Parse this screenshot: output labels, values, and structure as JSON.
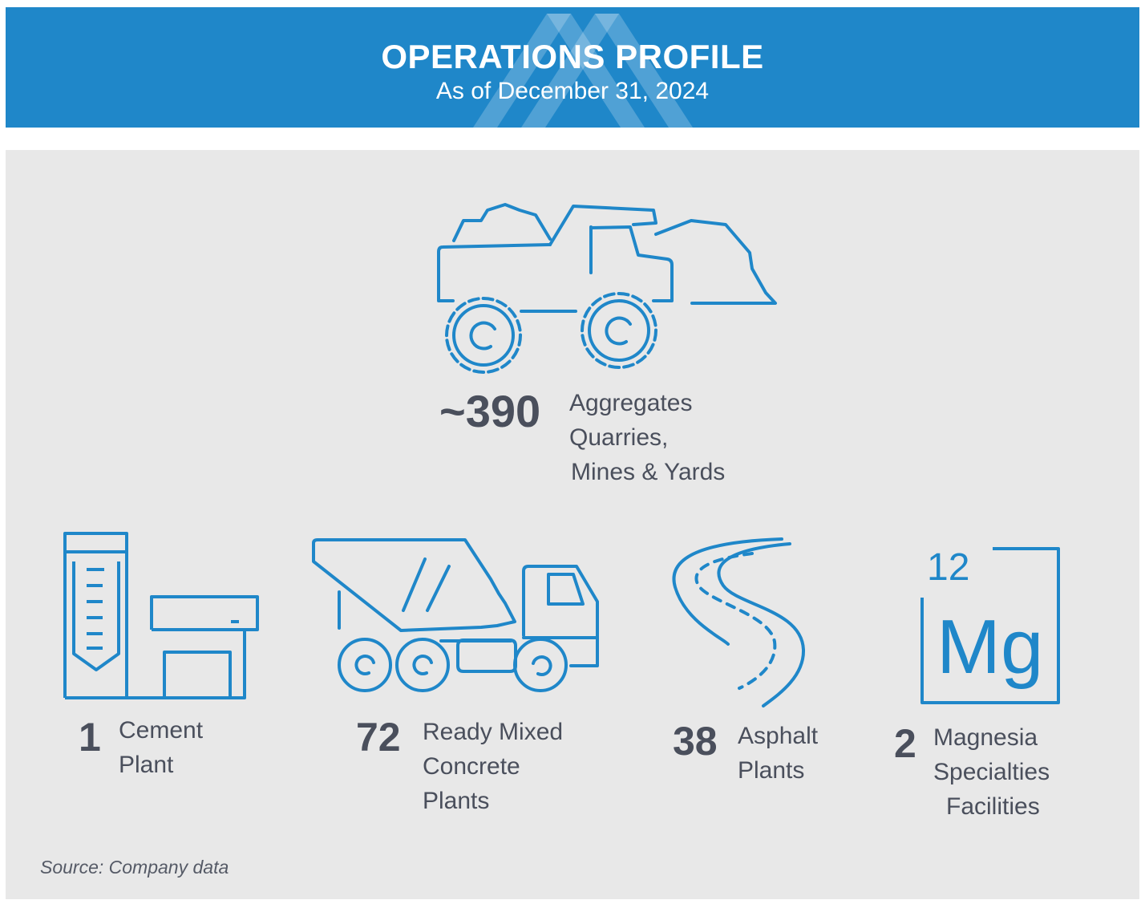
{
  "header": {
    "title": "OPERATIONS PROFILE",
    "subtitle": "As of December 31, 2024"
  },
  "stats": [
    {
      "key": "aggregates",
      "value": "~390",
      "label_lines": [
        "Aggregates",
        "Quarries,",
        "Mines & Yards"
      ],
      "icon": "haul-truck-icon"
    },
    {
      "key": "cement",
      "value": "1",
      "label_lines": [
        "Cement",
        "Plant"
      ],
      "icon": "cement-plant-icon"
    },
    {
      "key": "ready-mixed",
      "value": "72",
      "label_lines": [
        "Ready Mixed",
        "Concrete",
        "Plants"
      ],
      "icon": "mixer-truck-icon"
    },
    {
      "key": "asphalt",
      "value": "38",
      "label_lines": [
        "Asphalt",
        "Plants"
      ],
      "icon": "road-icon"
    },
    {
      "key": "magnesia",
      "value": "2",
      "label_lines": [
        "Magnesia",
        "Specialties",
        "Facilities"
      ],
      "icon": "magnesium-element-icon"
    }
  ],
  "element_tile": {
    "atomic_number": "12",
    "symbol": "Mg"
  },
  "source": "Source: Company data",
  "colors": {
    "accent": "#1f87c9",
    "text": "#4a4f5c",
    "panel": "#e8e8e8"
  }
}
